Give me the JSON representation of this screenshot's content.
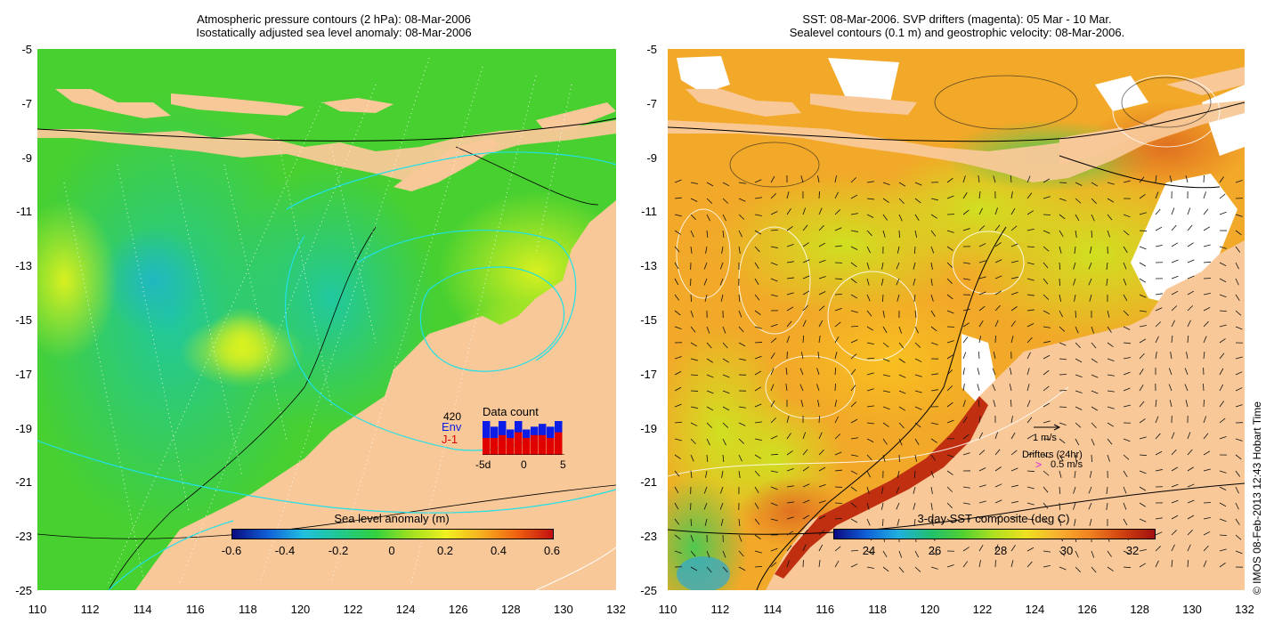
{
  "left_panel": {
    "title_line1": "Atmospheric pressure contours (2 hPa): 08-Mar-2006",
    "title_line2": "Isostatically adjusted sea level anomaly: 08-Mar-2006",
    "colorbar_title": "Sea level anomaly (m)",
    "colorbar_labels": [
      "-0.6",
      "-0.4",
      "-0.2",
      "0",
      "0.2",
      "0.4",
      "0.6"
    ],
    "inset": {
      "title": "Data count",
      "count": "420",
      "env_label": "Env",
      "j1_label": "J-1",
      "x_labels": [
        "-5d",
        "0",
        "5"
      ],
      "env_color": "#0b1de6",
      "j1_color": "#e00000",
      "env_counts": [
        12,
        10,
        12,
        9,
        12,
        9,
        10,
        11,
        10,
        12
      ],
      "j1_counts": [
        6,
        6,
        7,
        6,
        8,
        6,
        7,
        7,
        6,
        8
      ]
    }
  },
  "right_panel": {
    "title_line1": "SST: 08-Mar-2006. SVP drifters (magenta): 05 Mar - 10 Mar.",
    "title_line2": "Sealevel contours (0.1 m) and geostrophic velocity: 08-Mar-2006.",
    "colorbar_title": "3-day SST composite (deg C)",
    "colorbar_labels": [
      "24",
      "26",
      "28",
      "30",
      "32"
    ],
    "velocity_scale_label": "1 m/s",
    "drifters_label": "Drifters (24hr)",
    "drifter_symbol": ">",
    "drifter_scale_label": "0.5 m/s",
    "drifter_color": "#e020e0"
  },
  "axes": {
    "y_labels": [
      "-5",
      "-7",
      "-9",
      "-11",
      "-13",
      "-15",
      "-17",
      "-19",
      "-21",
      "-23",
      "-25"
    ],
    "x_labels": [
      "110",
      "112",
      "114",
      "116",
      "118",
      "120",
      "122",
      "124",
      "126",
      "128",
      "130",
      "132"
    ]
  },
  "copyright": "© IMOS 08-Feb-2013 12:43 Hobart Time",
  "colors": {
    "land": "#f8c898",
    "sla_ramp": [
      "#0a0a80",
      "#1060d8",
      "#20c0e0",
      "#20c890",
      "#30d040",
      "#a0e020",
      "#f0f020",
      "#f8b020",
      "#f06010",
      "#c01010"
    ],
    "sst_ramp": [
      "#0a0a80",
      "#1060d8",
      "#20b0e0",
      "#20c070",
      "#50d030",
      "#b0e020",
      "#f0e020",
      "#f8b030",
      "#f08020",
      "#d04010",
      "#a01010"
    ]
  }
}
